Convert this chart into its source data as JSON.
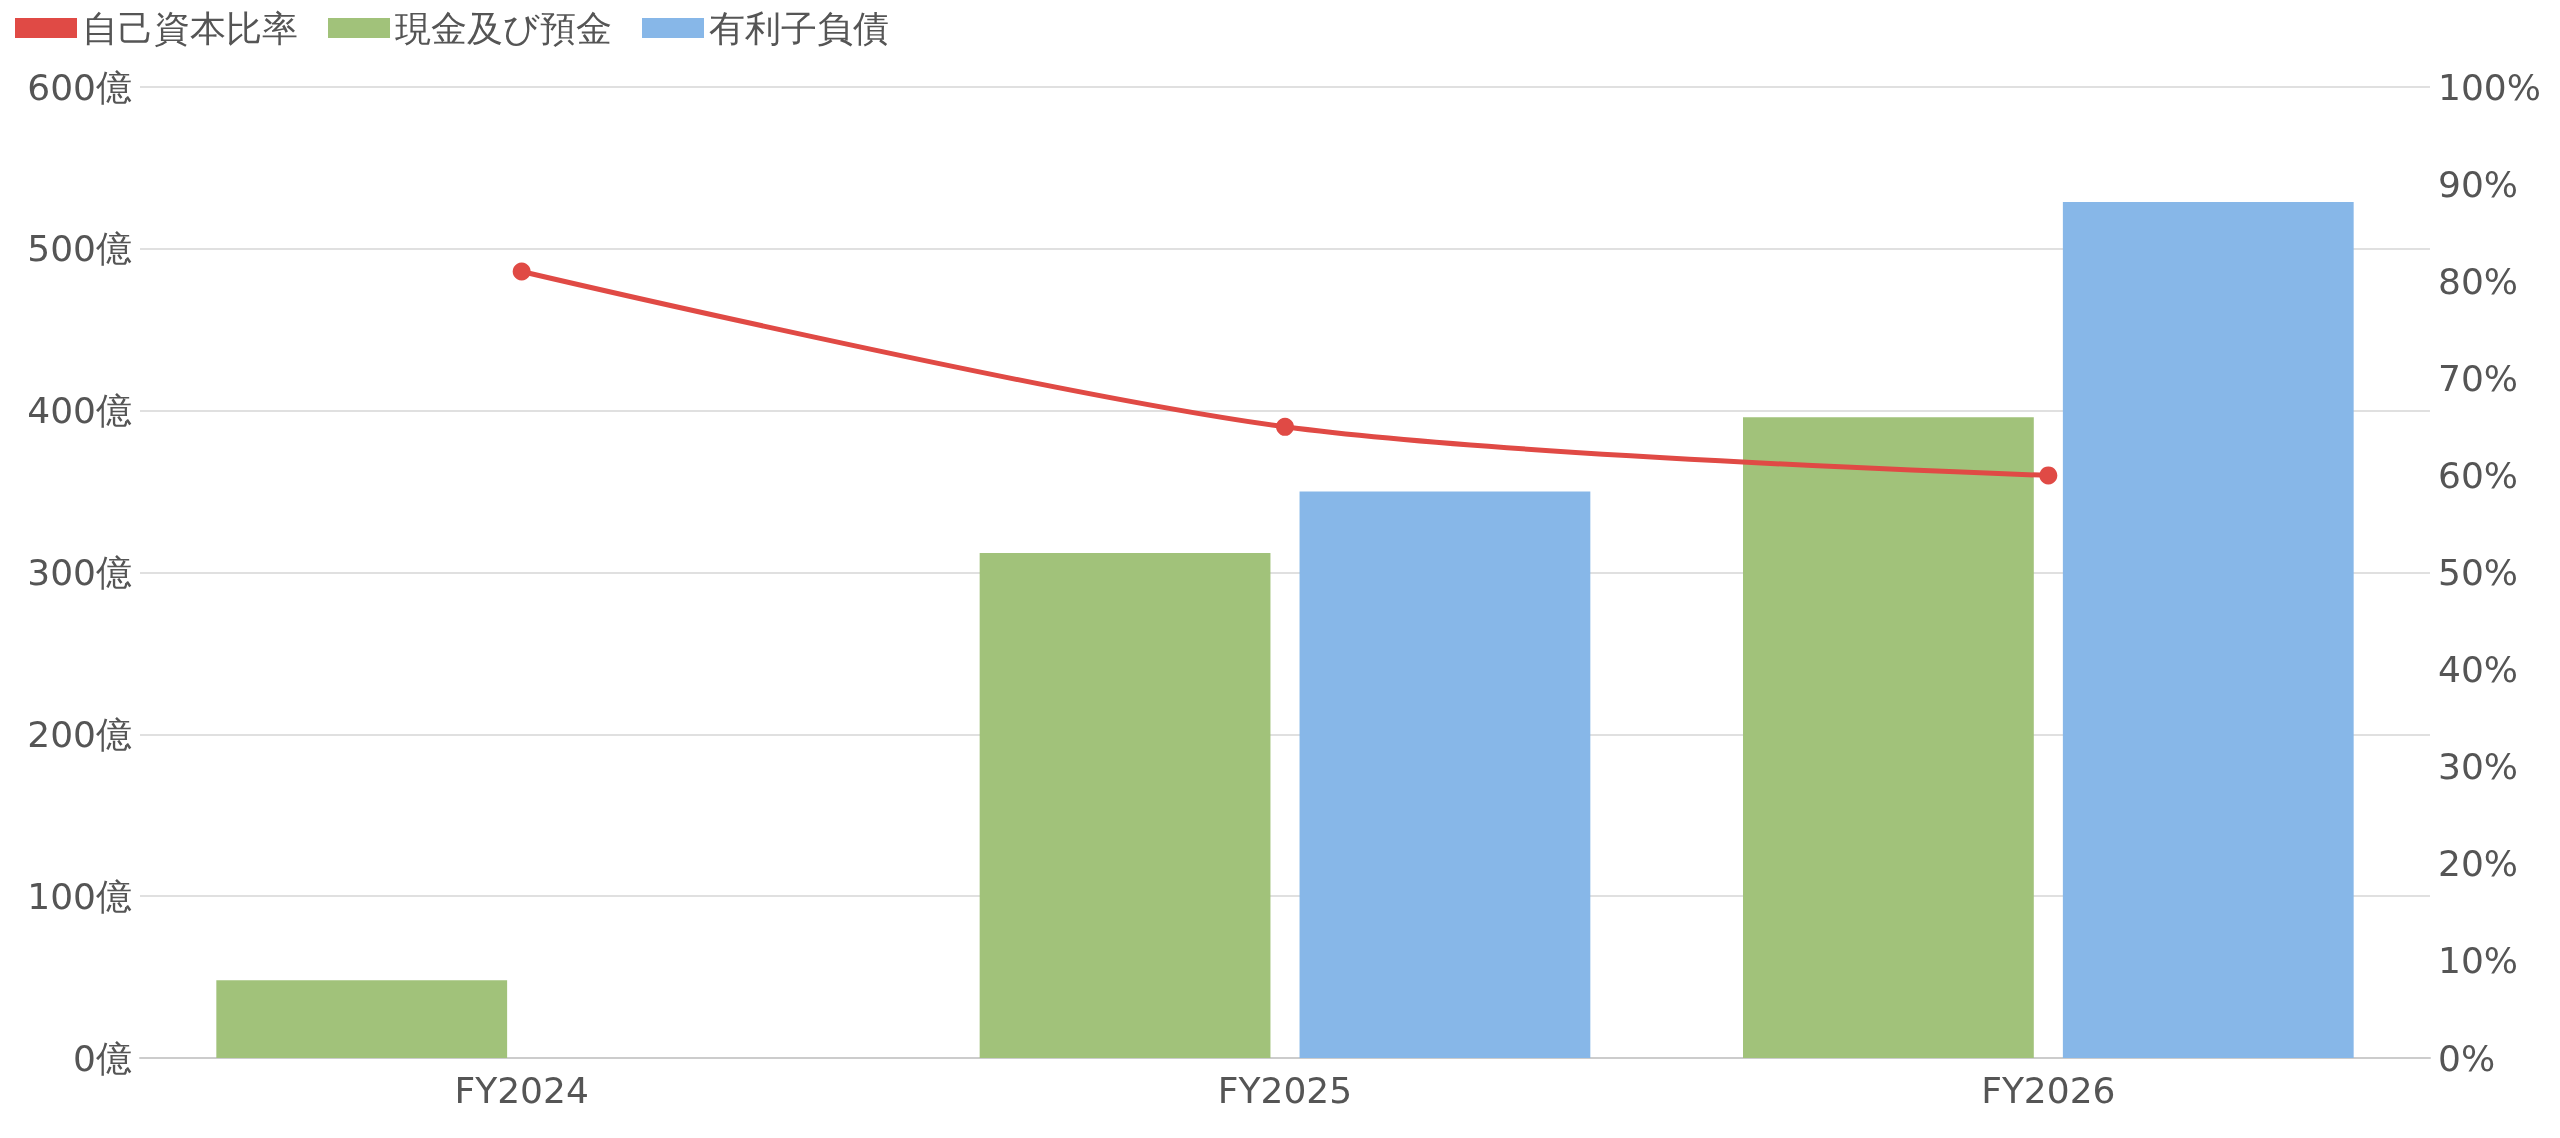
{
  "chart_data": {
    "type": "bar",
    "categories": [
      "FY2024",
      "FY2025",
      "FY2026"
    ],
    "series": [
      {
        "name": "自己資本比率",
        "type": "line",
        "axis": "y2",
        "color": "#e04a45",
        "values": [
          81,
          65,
          60
        ]
      },
      {
        "name": "現金及び預金",
        "color": "#a1c27a",
        "values": [
          48,
          312,
          396
        ]
      },
      {
        "name": "有利子負債",
        "color": "#87b7e8",
        "values": [
          null,
          350,
          529
        ]
      }
    ],
    "ylim": [
      0,
      600
    ],
    "yticks": [
      {
        "value": 0,
        "label": "0億"
      },
      {
        "value": 100,
        "label": "100億"
      },
      {
        "value": 200,
        "label": "200億"
      },
      {
        "value": 300,
        "label": "300億"
      },
      {
        "value": 400,
        "label": "400億"
      },
      {
        "value": 500,
        "label": "500億"
      },
      {
        "value": 600,
        "label": "600億"
      }
    ],
    "y2lim": [
      0,
      100
    ],
    "y2ticks": [
      {
        "value": 0,
        "label": "0%"
      },
      {
        "value": 10,
        "label": "10%"
      },
      {
        "value": 20,
        "label": "20%"
      },
      {
        "value": 30,
        "label": "30%"
      },
      {
        "value": 40,
        "label": "40%"
      },
      {
        "value": 50,
        "label": "50%"
      },
      {
        "value": 60,
        "label": "60%"
      },
      {
        "value": 70,
        "label": "70%"
      },
      {
        "value": 80,
        "label": "80%"
      },
      {
        "value": 90,
        "label": "90%"
      },
      {
        "value": 100,
        "label": "100%"
      }
    ],
    "grid": "y",
    "legend": "top left",
    "marker": "circle"
  }
}
